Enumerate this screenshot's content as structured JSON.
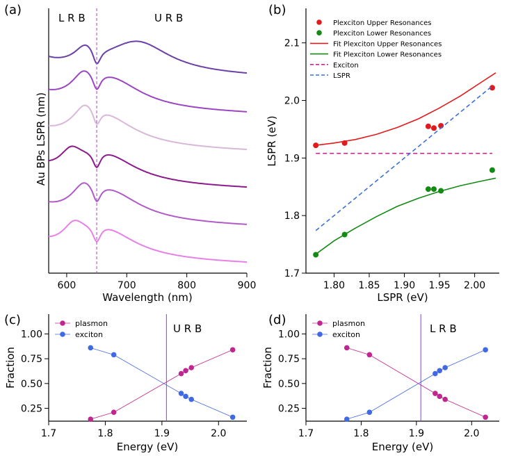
{
  "panels": {
    "a": {
      "letter": "(a)"
    },
    "b": {
      "letter": "(b)"
    },
    "c": {
      "letter": "(c)"
    },
    "d": {
      "letter": "(d)"
    }
  },
  "chart_data": [
    {
      "id": "a",
      "type": "line",
      "xlabel": "Wavelength (nm)",
      "ylabel": "Au BPs LSPR (nm)",
      "xlim": [
        570,
        900
      ],
      "xticks": [
        600,
        700,
        800,
        900
      ],
      "yticks": [],
      "annotations": [
        "L R B",
        "U R B"
      ],
      "vline": {
        "x": 650,
        "color": "#b44fcf",
        "style": "dashed"
      },
      "series": [
        {
          "color": "#6a3fa6",
          "offset": 0.0,
          "lsp_peak": 718,
          "coupled_peak": 632,
          "dip": 650
        },
        {
          "color": "#9a45c2",
          "offset": -1.0,
          "lsp_peak": 670,
          "coupled_peak": 628,
          "dip": 650
        },
        {
          "color": "#d9b7d9",
          "offset": -2.0,
          "lsp_peak": 660,
          "coupled_peak": 630,
          "dip": 650
        },
        {
          "color": "#8b1a8b",
          "offset": -3.0,
          "lsp_peak": 660,
          "coupled_peak": 607,
          "dip": 650
        },
        {
          "color": "#b05ac8",
          "offset": -4.0,
          "lsp_peak": 668,
          "coupled_peak": 628,
          "dip": 650
        },
        {
          "color": "#e680e6",
          "offset": -5.0,
          "lsp_peak": 660,
          "coupled_peak": 612,
          "dip": 650
        }
      ]
    },
    {
      "id": "b",
      "type": "scatter",
      "xlabel": "LSPR (eV)",
      "ylabel": "LSPR (eV)",
      "xlim": [
        1.76,
        2.035
      ],
      "ylim": [
        1.7,
        2.16
      ],
      "xticks": [
        "1.80",
        "1.85",
        "1.90",
        "1.95",
        "2.00"
      ],
      "yticks": [
        "1.7",
        "1.8",
        "1.9",
        "2.0",
        "2.1"
      ],
      "legend_position": "top-left",
      "series": [
        {
          "name": "Plexciton Upper Resonances",
          "kind": "points",
          "color": "#e31a1c",
          "x": [
            1.774,
            1.815,
            1.934,
            1.942,
            1.952,
            2.025
          ],
          "y": [
            1.922,
            1.926,
            1.955,
            1.952,
            1.956,
            2.022
          ]
        },
        {
          "name": "Plexciton Lower Resonances",
          "kind": "points",
          "color": "#138a13",
          "x": [
            1.774,
            1.815,
            1.934,
            1.942,
            1.952,
            2.025
          ],
          "y": [
            1.732,
            1.767,
            1.846,
            1.846,
            1.843,
            1.879
          ]
        },
        {
          "name": "Fit Plexciton Upper Resonances",
          "kind": "line",
          "color": "#e31a1c",
          "x": [
            1.774,
            1.8,
            1.83,
            1.86,
            1.89,
            1.92,
            1.95,
            1.98,
            2.01,
            2.03
          ],
          "y": [
            1.922,
            1.926,
            1.932,
            1.941,
            1.953,
            1.968,
            1.987,
            2.008,
            2.032,
            2.048
          ]
        },
        {
          "name": "Fit Plexciton Lower Resonances",
          "kind": "line",
          "color": "#138a13",
          "x": [
            1.774,
            1.8,
            1.83,
            1.86,
            1.89,
            1.92,
            1.95,
            1.98,
            2.01,
            2.03
          ],
          "y": [
            1.733,
            1.756,
            1.778,
            1.798,
            1.816,
            1.83,
            1.842,
            1.852,
            1.86,
            1.865
          ]
        },
        {
          "name": "Exciton",
          "kind": "dashed",
          "color": "#c2278f",
          "x": [
            1.774,
            2.025
          ],
          "y": [
            1.908,
            1.908
          ]
        },
        {
          "name": "LSPR",
          "kind": "dashed",
          "color": "#3a6fd8",
          "x": [
            1.774,
            2.025
          ],
          "y": [
            1.774,
            2.025
          ]
        }
      ]
    },
    {
      "id": "c",
      "type": "line",
      "xlabel": "Energy (eV)",
      "ylabel": "Fraction",
      "xlim": [
        1.7,
        2.05
      ],
      "ylim": [
        0.12,
        1.2
      ],
      "xticks": [
        "1.7",
        "1.8",
        "1.9",
        "2.0"
      ],
      "yticks": [
        "0.25",
        "0.50",
        "0.75",
        "1.00"
      ],
      "annotation": "U R B",
      "vline": {
        "x": 1.908,
        "color": "#9b30ff"
      },
      "legend_position": "top-left",
      "series": [
        {
          "name": "plasmon",
          "color": "#c0268f",
          "x": [
            1.774,
            1.815,
            1.934,
            1.942,
            1.952,
            2.025
          ],
          "y": [
            0.14,
            0.21,
            0.6,
            0.63,
            0.66,
            0.84
          ]
        },
        {
          "name": "exciton",
          "color": "#4169e1",
          "x": [
            1.774,
            1.815,
            1.934,
            1.942,
            1.952,
            2.025
          ],
          "y": [
            0.86,
            0.79,
            0.4,
            0.37,
            0.34,
            0.16
          ]
        }
      ]
    },
    {
      "id": "d",
      "type": "line",
      "xlabel": "Energy (eV)",
      "ylabel": "Fraction",
      "xlim": [
        1.7,
        2.05
      ],
      "ylim": [
        0.12,
        1.2
      ],
      "xticks": [
        "1.7",
        "1.8",
        "1.9",
        "2.0"
      ],
      "yticks": [
        "0.25",
        "0.50",
        "0.75",
        "1.00"
      ],
      "annotation": "L R B",
      "vline": {
        "x": 1.908,
        "color": "#9b30ff"
      },
      "legend_position": "top-left",
      "series": [
        {
          "name": "plasmon",
          "color": "#c0268f",
          "x": [
            1.774,
            1.815,
            1.934,
            1.942,
            1.952,
            2.025
          ],
          "y": [
            0.86,
            0.79,
            0.4,
            0.37,
            0.34,
            0.16
          ]
        },
        {
          "name": "exciton",
          "color": "#4169e1",
          "x": [
            1.774,
            1.815,
            1.934,
            1.942,
            1.952,
            2.025
          ],
          "y": [
            0.14,
            0.21,
            0.6,
            0.63,
            0.66,
            0.84
          ]
        }
      ]
    }
  ]
}
